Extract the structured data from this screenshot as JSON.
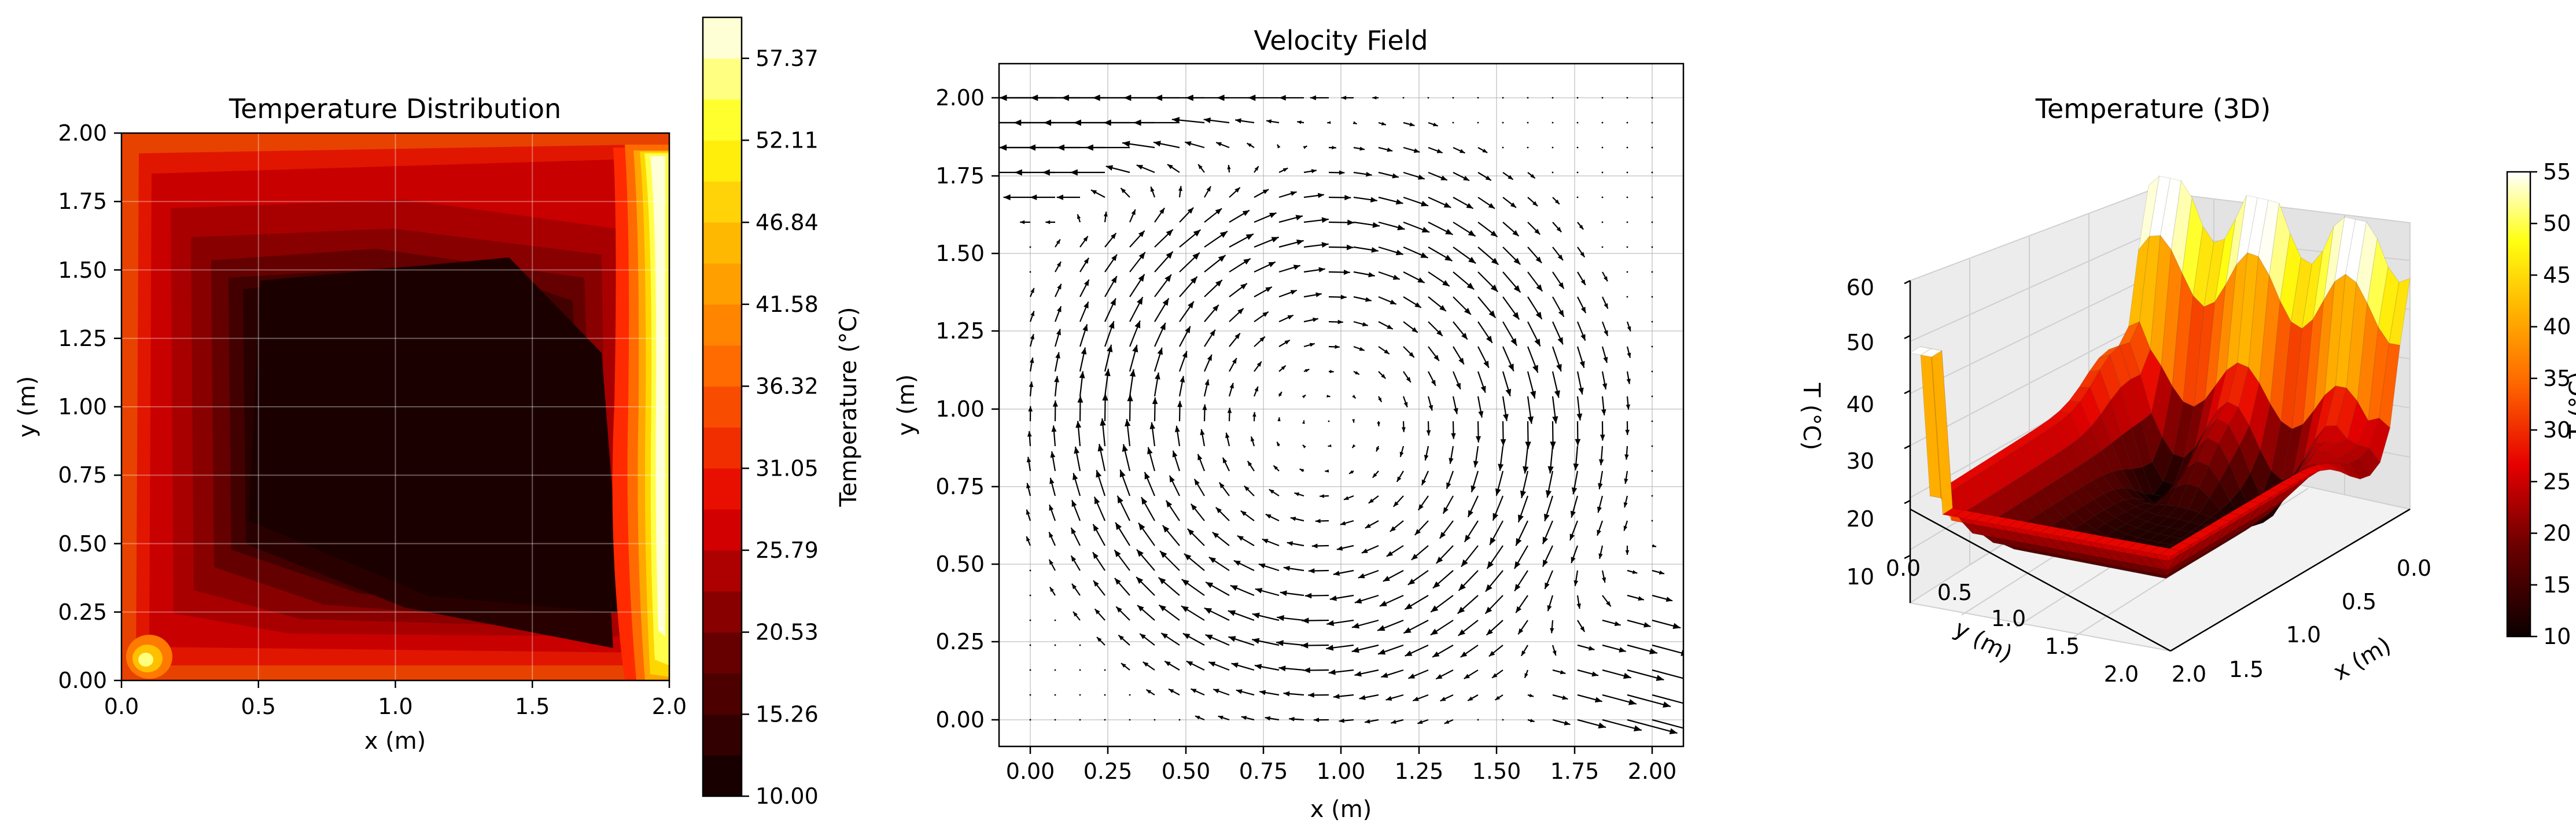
{
  "chart_data": [
    {
      "type": "contourf",
      "title": "Temperature Distribution",
      "xlabel": "x (m)",
      "ylabel": "y (m)",
      "xlim": [
        0,
        2
      ],
      "ylim": [
        0,
        2
      ],
      "x_ticks": [
        "0.0",
        "0.5",
        "1.0",
        "1.5",
        "2.0"
      ],
      "y_ticks": [
        "0.00",
        "0.25",
        "0.50",
        "0.75",
        "1.00",
        "1.25",
        "1.50",
        "1.75",
        "2.00"
      ],
      "grid": true,
      "colormap": "hot",
      "colorbar": {
        "label": "Temperature (°C)",
        "range": [
          10.0,
          60.0
        ],
        "ticks": [
          "10.00",
          "15.26",
          "20.53",
          "25.79",
          "31.05",
          "36.32",
          "41.58",
          "46.84",
          "52.11",
          "57.37"
        ],
        "levels": 19
      },
      "field_summary": {
        "cold_core_T": 10.5,
        "hot_right_edge_T": 60.0,
        "hot_spot_bottom_left_T": 52.0,
        "boundary_T": 27.0
      }
    },
    {
      "type": "quiver",
      "title": "Velocity Field",
      "xlabel": "x (m)",
      "ylabel": "y (m)",
      "xlim": [
        -0.1,
        2.1
      ],
      "ylim": [
        -0.1,
        2.1
      ],
      "x_ticks": [
        "0.00",
        "0.25",
        "0.50",
        "0.75",
        "1.00",
        "1.25",
        "1.50",
        "1.75",
        "2.00"
      ],
      "y_ticks": [
        "0.00",
        "0.25",
        "0.50",
        "0.75",
        "1.00",
        "1.25",
        "1.50",
        "1.75",
        "2.00"
      ],
      "grid": true,
      "grid_points": 26,
      "pattern": "clockwise recirculation; strong leftward jets near top-left, strong rightward flow near bottom-right"
    },
    {
      "type": "surface3d",
      "title": "Temperature (3D)",
      "xlabel": "x (m)",
      "ylabel": "y (m)",
      "zlabel": "T (°C)",
      "x_ticks": [
        "0.0",
        "0.5",
        "1.0",
        "1.5",
        "2.0"
      ],
      "y_ticks": [
        "0.0",
        "0.5",
        "1.0",
        "1.5",
        "2.0"
      ],
      "z_ticks": [
        "10",
        "20",
        "30",
        "40",
        "50",
        "60"
      ],
      "zlim": [
        10,
        60
      ],
      "colormap": "hot",
      "colorbar": {
        "label": "T (°C)",
        "range": [
          10,
          55
        ],
        "ticks": [
          "10",
          "15",
          "20",
          "25",
          "30",
          "35",
          "40",
          "45",
          "50",
          "55"
        ]
      }
    }
  ]
}
